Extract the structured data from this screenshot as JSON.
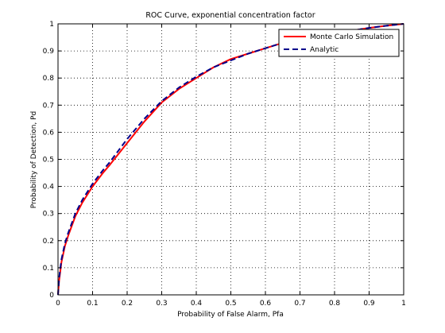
{
  "chart_data": {
    "type": "line",
    "title": "ROC Curve, exponential concentration factor",
    "xlabel": "Probability of False Alarm, Pfa",
    "ylabel": "Probability of Detection, Pd",
    "xlim": [
      0,
      1
    ],
    "ylim": [
      0,
      1
    ],
    "grid": true,
    "legend_position": "top-right",
    "x_ticks": [
      "0",
      "0.1",
      "0.2",
      "0.3",
      "0.4",
      "0.5",
      "0.6",
      "0.7",
      "0.8",
      "0.9",
      "1"
    ],
    "y_ticks": [
      "0",
      "0.1",
      "0.2",
      "0.3",
      "0.4",
      "0.5",
      "0.6",
      "0.7",
      "0.8",
      "0.9",
      "1"
    ],
    "series": [
      {
        "name": "Monte Carlo Simulation",
        "color": "#ff0000",
        "style": "solid",
        "x": [
          0,
          0.003,
          0.01,
          0.02,
          0.03,
          0.05,
          0.07,
          0.1,
          0.13,
          0.15,
          0.2,
          0.25,
          0.3,
          0.35,
          0.4,
          0.45,
          0.5,
          0.55,
          0.6,
          0.65,
          0.7,
          0.75,
          0.8,
          0.85,
          0.9,
          0.95,
          1.0
        ],
        "y": [
          0,
          0.05,
          0.12,
          0.18,
          0.22,
          0.29,
          0.34,
          0.4,
          0.45,
          0.48,
          0.56,
          0.64,
          0.71,
          0.76,
          0.8,
          0.84,
          0.87,
          0.89,
          0.91,
          0.93,
          0.945,
          0.955,
          0.965,
          0.975,
          0.985,
          0.993,
          1.0
        ]
      },
      {
        "name": "Analytic",
        "color": "#00008b",
        "style": "dashed",
        "x": [
          0,
          0.003,
          0.01,
          0.02,
          0.03,
          0.05,
          0.07,
          0.1,
          0.13,
          0.15,
          0.2,
          0.25,
          0.3,
          0.35,
          0.4,
          0.45,
          0.5,
          0.55,
          0.6,
          0.65,
          0.7,
          0.75,
          0.8,
          0.85,
          0.9,
          0.95,
          1.0
        ],
        "y": [
          0,
          0.06,
          0.13,
          0.19,
          0.23,
          0.3,
          0.35,
          0.41,
          0.46,
          0.49,
          0.575,
          0.65,
          0.715,
          0.765,
          0.805,
          0.84,
          0.865,
          0.89,
          0.91,
          0.93,
          0.945,
          0.955,
          0.965,
          0.975,
          0.985,
          0.993,
          1.0
        ]
      }
    ]
  }
}
